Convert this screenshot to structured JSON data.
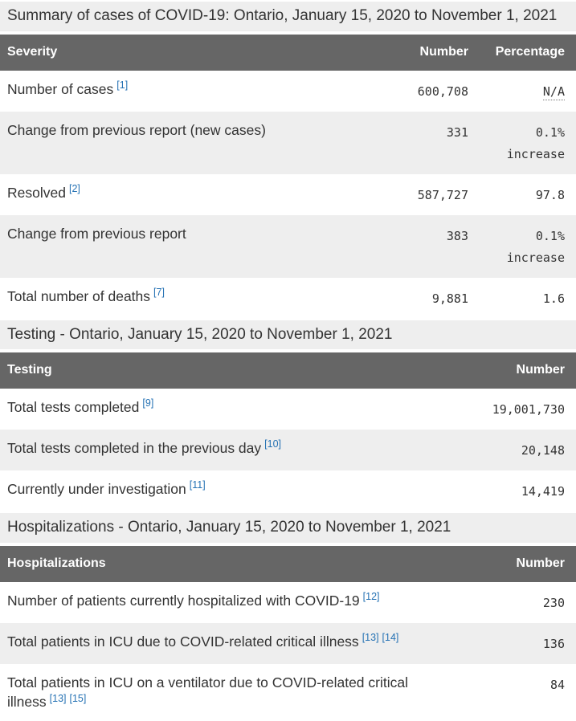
{
  "colors": {
    "header_bg": "#666666",
    "band_bg": "#eeeeee",
    "stripe_bg": "#eeeeee",
    "link_color": "#2572b4",
    "text_color": "#333333"
  },
  "tables": [
    {
      "name": "severity",
      "caption": "Summary of cases of COVID-19: Ontario, January 15, 2020 to November 1, 2021",
      "columns": [
        "Severity",
        "Number",
        "Percentage"
      ],
      "rows": [
        {
          "label": "Number of cases",
          "refs": [
            "[1]"
          ],
          "number": "600,708",
          "percentage": "N/A",
          "percentage_is_abbr": true
        },
        {
          "label": "Change from previous report (new cases)",
          "refs": [],
          "number": "331",
          "percentage": "0.1% increase"
        },
        {
          "label": "Resolved",
          "refs": [
            "[2]"
          ],
          "number": "587,727",
          "percentage": "97.8"
        },
        {
          "label": "Change from previous report",
          "refs": [],
          "number": "383",
          "percentage": "0.1% increase"
        },
        {
          "label": "Total number of deaths",
          "refs": [
            "[7]"
          ],
          "number": "9,881",
          "percentage": "1.6"
        }
      ]
    },
    {
      "name": "testing",
      "caption": "Testing - Ontario, January 15, 2020 to November 1, 2021",
      "columns": [
        "Testing",
        "Number"
      ],
      "rows": [
        {
          "label": "Total tests completed",
          "refs": [
            "[9]"
          ],
          "number": "19,001,730"
        },
        {
          "label": "Total tests completed in the previous day",
          "refs": [
            "[10]"
          ],
          "number": "20,148"
        },
        {
          "label": "Currently under investigation",
          "refs": [
            "[11]"
          ],
          "number": "14,419"
        }
      ]
    },
    {
      "name": "hospitalizations",
      "caption": "Hospitalizations - Ontario, January 15, 2020 to November 1, 2021",
      "columns": [
        "Hospitalizations",
        "Number"
      ],
      "rows": [
        {
          "label": "Number of patients currently hospitalized with COVID-19",
          "refs": [
            "[12]"
          ],
          "number": "230"
        },
        {
          "label": "Total patients in ICU due to COVID-related critical illness",
          "refs": [
            "[13]",
            "[14]"
          ],
          "number": "136"
        },
        {
          "label": "Total patients in ICU on a ventilator due to COVID-related critical illness",
          "refs": [
            "[13]",
            "[15]"
          ],
          "number": "84"
        }
      ]
    }
  ]
}
